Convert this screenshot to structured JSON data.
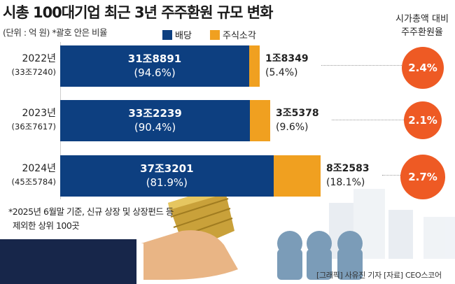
{
  "chart_data": {
    "type": "bar",
    "stacked": true,
    "orientation": "horizontal",
    "title": "시총 100대기업 최근 3년 주주환원 규모 변화",
    "subtitle": "(단위 : 억 원) *괄호 안은 비율",
    "legend": [
      "배당",
      "주식소각"
    ],
    "categories": [
      "2022년",
      "2023년",
      "2024년"
    ],
    "totals_label": [
      "(33조7240)",
      "(36조7617)",
      "(45조5784)"
    ],
    "totals": [
      337240,
      367617,
      455784
    ],
    "series": [
      {
        "name": "배당",
        "color": "#0d3f80",
        "values": [
          318891,
          332239,
          373201
        ],
        "labels": [
          "31조8891",
          "33조2239",
          "37조3201"
        ],
        "pct_labels": [
          "(94.6%)",
          "(90.4%)",
          "(81.9%)"
        ]
      },
      {
        "name": "주식소각",
        "color": "#f0a020",
        "values": [
          18349,
          35378,
          82583
        ],
        "labels": [
          "1조8349",
          "3조5378",
          "8조2583"
        ],
        "pct_labels": [
          "(5.4%)",
          "(9.6%)",
          "(18.1%)"
        ]
      }
    ],
    "rate_header": [
      "시가총액 대비",
      "주주환원율"
    ],
    "rates": [
      2.4,
      2.1,
      2.7
    ],
    "rate_labels": [
      "2.4%",
      "2.1%",
      "2.7%"
    ]
  },
  "note": [
    "*2025년 6월말 기준, 신규 상장 및 상장펀드 등",
    "제외한 상위 100곳"
  ],
  "credit": "[그래픽] 사유진 기자   [자료] CEO스코어",
  "colors": {
    "circle": "#ee5a24",
    "navy": "#0d3f80",
    "orange": "#f0a020"
  }
}
